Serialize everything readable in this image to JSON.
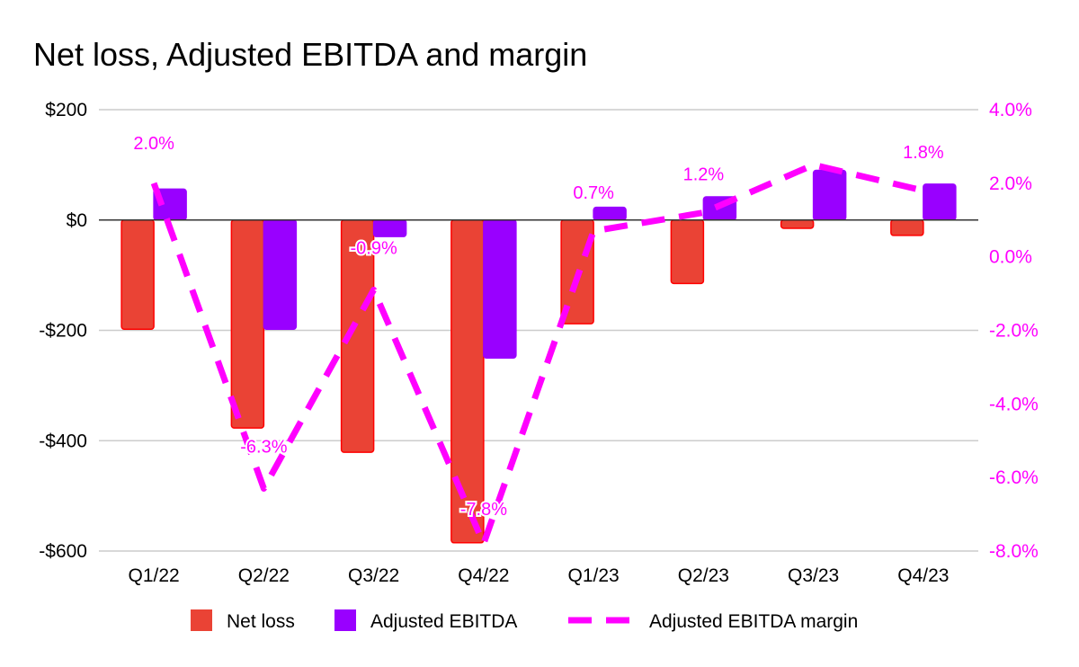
{
  "chart_data": {
    "type": "bar",
    "title": "Net loss, Adjusted EBITDA and margin",
    "categories": [
      "Q1/22",
      "Q2/22",
      "Q3/22",
      "Q4/22",
      "Q1/23",
      "Q2/23",
      "Q3/23",
      "Q4/23"
    ],
    "series": [
      {
        "name": "Net loss",
        "type": "bar",
        "axis": "left",
        "color": "#ea4335",
        "values": [
          -198,
          -377,
          -421,
          -585,
          -188,
          -115,
          -15,
          -28
        ]
      },
      {
        "name": "Adjusted EBITDA",
        "type": "bar",
        "axis": "left",
        "color": "#9900ff",
        "values": [
          56,
          -198,
          -30,
          -250,
          23,
          42,
          90,
          65
        ]
      },
      {
        "name": "Adjusted EBITDA margin",
        "type": "line",
        "axis": "right",
        "style": "dashed",
        "color": "#ff00ff",
        "values": [
          2.0,
          -6.3,
          -0.9,
          -7.8,
          0.7,
          1.2,
          2.5,
          1.8
        ],
        "labels": [
          "2.0%",
          "-6.3%",
          "-0.9%",
          "-7.8%",
          "0.7%",
          "1.2%",
          "",
          "1.8%"
        ]
      }
    ],
    "y_left": {
      "ylim": [
        -600,
        200
      ],
      "ticks": [
        200,
        0,
        -200,
        -400,
        -600
      ],
      "tick_labels": [
        "$200",
        "$0",
        "-$200",
        "-$400",
        "-$600"
      ]
    },
    "y_right": {
      "ylim": [
        -8,
        4
      ],
      "ticks": [
        4,
        2,
        0,
        -2,
        -4,
        -6,
        -8
      ],
      "tick_labels": [
        "4.0%",
        "2.0%",
        "0.0%",
        "-2.0%",
        "-4.0%",
        "-6.0%",
        "-8.0%"
      ],
      "color": "#ff00ff"
    },
    "grid": true,
    "legend": "bottom"
  }
}
